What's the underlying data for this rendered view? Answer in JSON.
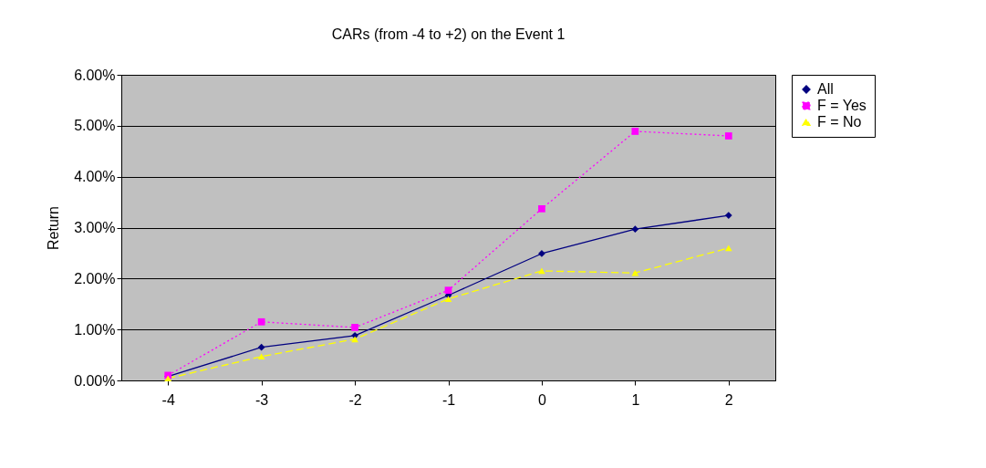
{
  "chart_data": {
    "type": "line",
    "title": "CARs (from -4 to +2) on the Event 1",
    "ylabel": "Return",
    "categories": [
      "-4",
      "-3",
      "-2",
      "-1",
      "0",
      "1",
      "2"
    ],
    "ylim": [
      0,
      6
    ],
    "yticks": [
      {
        "value": 0,
        "label": "0.00%"
      },
      {
        "value": 1,
        "label": "1.00%"
      },
      {
        "value": 2,
        "label": "2.00%"
      },
      {
        "value": 3,
        "label": "3.00%"
      },
      {
        "value": 4,
        "label": "4.00%"
      },
      {
        "value": 5,
        "label": "5.00%"
      },
      {
        "value": 6,
        "label": "6.00%"
      }
    ],
    "grid": "y",
    "legend": "right",
    "series": [
      {
        "name": "All",
        "color": "#000080",
        "marker": "diamond",
        "line_style": "solid",
        "values": [
          0.08,
          0.65,
          0.88,
          1.67,
          2.49,
          2.97,
          3.24
        ]
      },
      {
        "name": "F = Yes",
        "color": "#ff00ff",
        "marker": "square",
        "line_style": "dotted",
        "values": [
          0.1,
          1.15,
          1.04,
          1.77,
          3.37,
          4.89,
          4.8
        ]
      },
      {
        "name": "F = No",
        "color": "#ffff00",
        "marker": "triangle",
        "line_style": "dashed",
        "values": [
          0.04,
          0.47,
          0.81,
          1.6,
          2.15,
          2.11,
          2.6
        ]
      }
    ]
  }
}
